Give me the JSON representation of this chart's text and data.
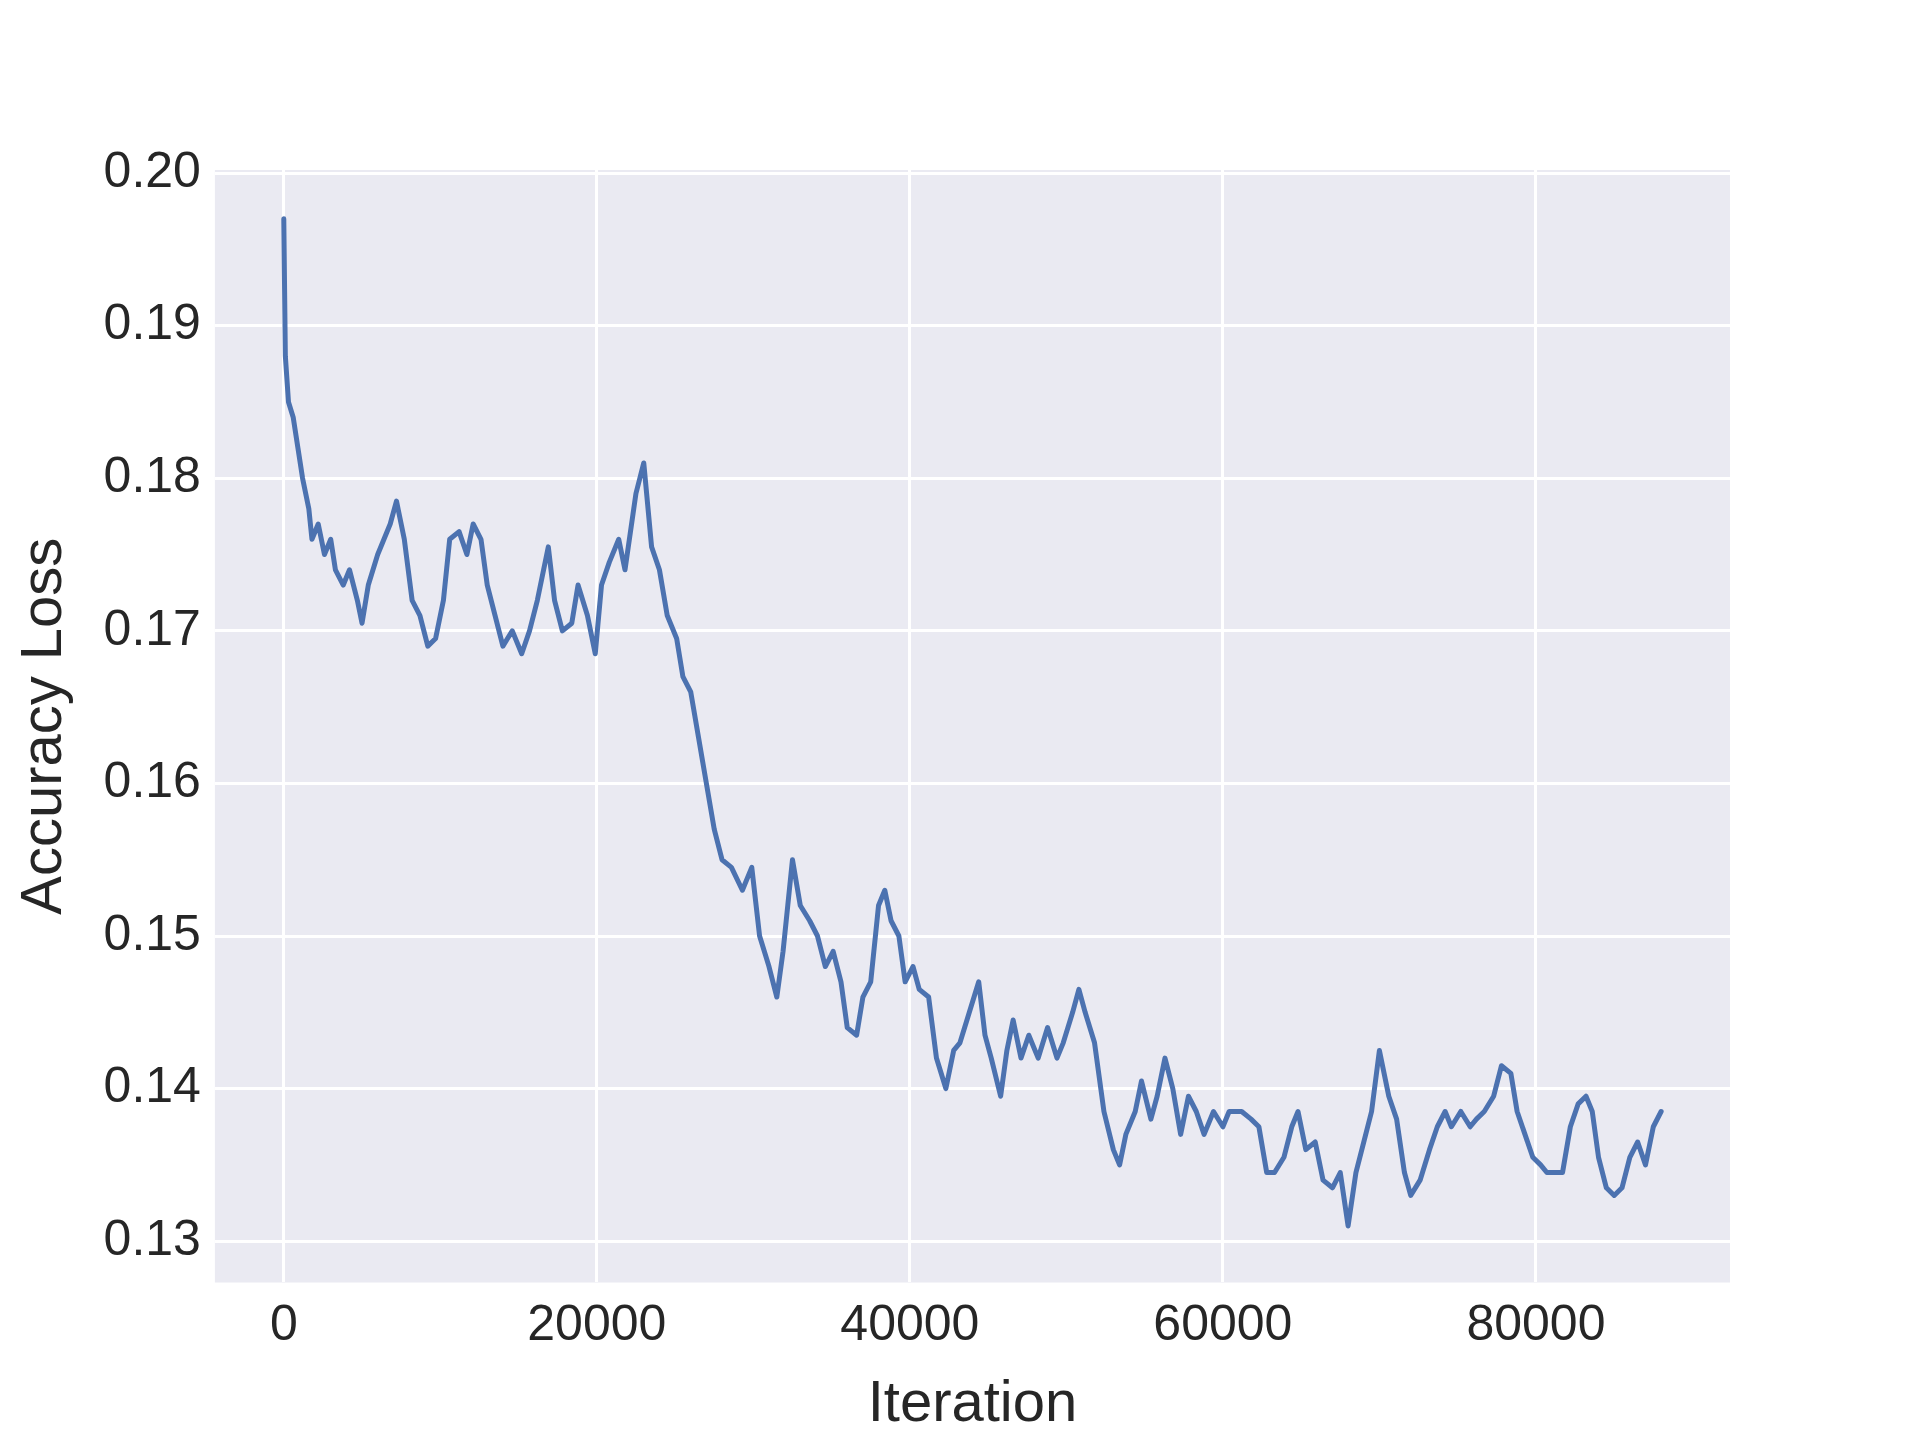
{
  "chart_data": {
    "type": "line",
    "xlabel": "Iteration",
    "ylabel": "Accuracy Loss",
    "xlim": [
      -4400,
      92400
    ],
    "xticks": [
      0,
      20000,
      40000,
      60000,
      80000
    ],
    "ylim": [
      0.1273,
      0.2002
    ],
    "yticks": [
      0.13,
      0.14,
      0.15,
      0.16,
      0.17,
      0.18,
      0.19,
      {
        "value": 0.2,
        "label": "0.20"
      }
    ],
    "grid": true,
    "legend": false,
    "marker": "none",
    "line_style": "solid",
    "x": [
      0,
      100,
      300,
      600,
      900,
      1200,
      1600,
      1800,
      2200,
      2600,
      3000,
      3300,
      3800,
      4200,
      4700,
      5000,
      5400,
      6000,
      6400,
      6800,
      7200,
      7700,
      8200,
      8700,
      9200,
      9700,
      10200,
      10600,
      11200,
      11700,
      12100,
      12600,
      13000,
      13500,
      14000,
      14600,
      15200,
      15700,
      16200,
      16900,
      17300,
      17800,
      18400,
      18800,
      19400,
      19900,
      20300,
      20800,
      21400,
      21800,
      22500,
      23000,
      23500,
      24000,
      24500,
      25100,
      25500,
      26000,
      26500,
      27000,
      27500,
      28000,
      28600,
      29300,
      29900,
      30400,
      31000,
      31500,
      31900,
      32200,
      32500,
      33000,
      33600,
      34100,
      34600,
      35100,
      35600,
      36000,
      36600,
      37000,
      37500,
      38000,
      38400,
      38800,
      39300,
      39700,
      40200,
      40600,
      41200,
      41700,
      42300,
      42800,
      43200,
      43800,
      44400,
      44800,
      45200,
      45800,
      46200,
      46600,
      47100,
      47600,
      48200,
      48800,
      49400,
      49800,
      50400,
      50800,
      51200,
      51800,
      52400,
      53000,
      53400,
      53800,
      54400,
      54800,
      55400,
      55800,
      56300,
      56800,
      57300,
      57800,
      58300,
      58800,
      59400,
      60000,
      60400,
      61200,
      61800,
      62300,
      62800,
      63300,
      63900,
      64400,
      64800,
      65300,
      65900,
      66400,
      67000,
      67500,
      68000,
      68500,
      69000,
      69500,
      70000,
      70600,
      71100,
      71600,
      72000,
      72600,
      73200,
      73700,
      74200,
      74600,
      75200,
      75800,
      76200,
      76700,
      77300,
      77800,
      78400,
      78800,
      79300,
      79800,
      80300,
      80700,
      81200,
      81700,
      82200,
      82700,
      83200,
      83600,
      84000,
      84500,
      85000,
      85500,
      86000,
      86500,
      87000,
      87500,
      88000
    ],
    "series": [
      {
        "color": "#4c72b0",
        "values": [
          0.197,
          0.188,
          0.185,
          0.184,
          0.182,
          0.18,
          0.178,
          0.176,
          0.177,
          0.175,
          0.176,
          0.174,
          0.173,
          0.174,
          0.172,
          0.1705,
          0.173,
          0.175,
          0.176,
          0.177,
          0.1785,
          0.176,
          0.172,
          0.171,
          0.169,
          0.1695,
          0.172,
          0.176,
          0.1765,
          0.175,
          0.177,
          0.176,
          0.173,
          0.171,
          0.169,
          0.17,
          0.1685,
          0.17,
          0.172,
          0.1755,
          0.172,
          0.17,
          0.1705,
          0.173,
          0.171,
          0.1685,
          0.173,
          0.1745,
          0.176,
          0.174,
          0.179,
          0.181,
          0.1755,
          0.174,
          0.171,
          0.1695,
          0.167,
          0.166,
          0.163,
          0.16,
          0.157,
          0.155,
          0.1545,
          0.153,
          0.1545,
          0.15,
          0.148,
          0.146,
          0.149,
          0.152,
          0.155,
          0.152,
          0.151,
          0.15,
          0.148,
          0.149,
          0.147,
          0.144,
          0.1435,
          0.146,
          0.147,
          0.152,
          0.153,
          0.151,
          0.15,
          0.147,
          0.148,
          0.1465,
          0.146,
          0.142,
          0.14,
          0.1425,
          0.143,
          0.145,
          0.147,
          0.1435,
          0.142,
          0.1395,
          0.1425,
          0.1445,
          0.142,
          0.1435,
          0.142,
          0.144,
          0.142,
          0.143,
          0.145,
          0.1465,
          0.145,
          0.143,
          0.1385,
          0.136,
          0.135,
          0.137,
          0.1385,
          0.1405,
          0.138,
          0.1395,
          0.142,
          0.14,
          0.137,
          0.1395,
          0.1385,
          0.137,
          0.1385,
          0.1375,
          0.1385,
          0.1385,
          0.138,
          0.1375,
          0.1345,
          0.1345,
          0.1355,
          0.1375,
          0.1385,
          0.136,
          0.1365,
          0.134,
          0.1335,
          0.1345,
          0.131,
          0.1345,
          0.1365,
          0.1385,
          0.1425,
          0.1395,
          0.138,
          0.1345,
          0.133,
          0.134,
          0.136,
          0.1375,
          0.1385,
          0.1375,
          0.1385,
          0.1375,
          0.138,
          0.1385,
          0.1395,
          0.1415,
          0.141,
          0.1385,
          0.137,
          0.1355,
          0.135,
          0.1345,
          0.1345,
          0.1345,
          0.1375,
          0.139,
          0.1395,
          0.1385,
          0.1355,
          0.1335,
          0.133,
          0.1335,
          0.1355,
          0.1365,
          0.135,
          0.1375,
          0.1385
        ]
      }
    ]
  }
}
